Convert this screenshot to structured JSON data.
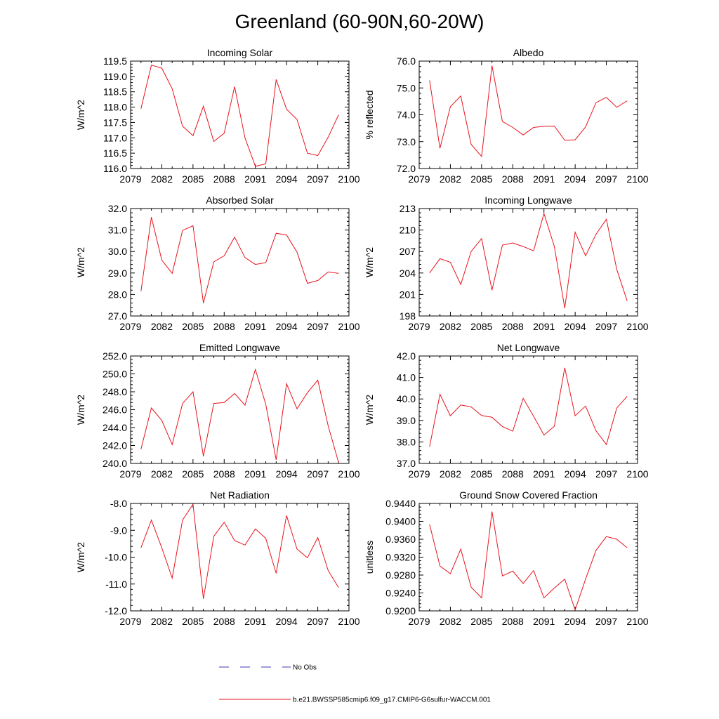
{
  "figure": {
    "title": "Greenland (60-90N,60-20W)",
    "legend": [
      {
        "label": "No Obs",
        "color": "#3b3bb3",
        "dash": true
      },
      {
        "label": "b.e21.BWSSP585cmip6.f09_g17.CMIP6-G6sulfur-WACCM.001",
        "color": "#e8141e",
        "dash": false
      }
    ]
  },
  "chart_data": [
    {
      "type": "line",
      "title": "Incoming Solar",
      "ylabel": "W/m^2",
      "xlim": [
        2079,
        2100
      ],
      "ylim": [
        116.0,
        119.5
      ],
      "xticks": [
        "2079",
        "2082",
        "2085",
        "2088",
        "2091",
        "2094",
        "2097",
        "2100"
      ],
      "yticks": [
        "116.0",
        "116.5",
        "117.0",
        "117.5",
        "118.0",
        "118.5",
        "119.0",
        "119.5"
      ],
      "x": [
        2080,
        2081,
        2082,
        2083,
        2084,
        2085,
        2086,
        2087,
        2088,
        2089,
        2090,
        2091,
        2092,
        2093,
        2094,
        2095,
        2096,
        2097,
        2098,
        2099
      ],
      "series": [
        {
          "name": "b.e21.BWSSP585cmip6.f09_g17.CMIP6-G6sulfur-WACCM.001",
          "values": [
            117.95,
            119.37,
            119.27,
            118.6,
            117.38,
            117.07,
            118.03,
            116.88,
            117.15,
            118.67,
            117.0,
            116.07,
            116.15,
            118.9,
            117.93,
            117.6,
            116.5,
            116.42,
            117.02,
            117.75
          ]
        }
      ]
    },
    {
      "type": "line",
      "title": "Albedo",
      "ylabel": "% reflected",
      "xlim": [
        2079,
        2100
      ],
      "ylim": [
        72.0,
        76.0
      ],
      "xticks": [
        "2079",
        "2082",
        "2085",
        "2088",
        "2091",
        "2094",
        "2097",
        "2100"
      ],
      "yticks": [
        "72.0",
        "73.0",
        "74.0",
        "75.0",
        "76.0"
      ],
      "x": [
        2080,
        2081,
        2082,
        2083,
        2084,
        2085,
        2086,
        2087,
        2088,
        2089,
        2090,
        2091,
        2092,
        2093,
        2094,
        2095,
        2096,
        2097,
        2098,
        2099
      ],
      "series": [
        {
          "name": "b.e21.BWSSP585cmip6.f09_g17.CMIP6-G6sulfur-WACCM.001",
          "values": [
            75.28,
            72.75,
            74.3,
            74.7,
            72.9,
            72.45,
            75.83,
            73.75,
            73.53,
            73.25,
            73.53,
            73.57,
            73.58,
            73.05,
            73.07,
            73.55,
            74.45,
            74.65,
            74.28,
            74.52
          ]
        }
      ]
    },
    {
      "type": "line",
      "title": "Absorbed Solar",
      "ylabel": "W/m^2",
      "xlim": [
        2079,
        2100
      ],
      "ylim": [
        27.0,
        32.0
      ],
      "xticks": [
        "2079",
        "2082",
        "2085",
        "2088",
        "2091",
        "2094",
        "2097",
        "2100"
      ],
      "yticks": [
        "27.0",
        "28.0",
        "29.0",
        "30.0",
        "31.0",
        "32.0"
      ],
      "x": [
        2080,
        2081,
        2082,
        2083,
        2084,
        2085,
        2086,
        2087,
        2088,
        2089,
        2090,
        2091,
        2092,
        2093,
        2094,
        2095,
        2096,
        2097,
        2098,
        2099
      ],
      "series": [
        {
          "name": "b.e21.BWSSP585cmip6.f09_g17.CMIP6-G6sulfur-WACCM.001",
          "values": [
            28.15,
            31.6,
            29.6,
            28.98,
            30.98,
            31.2,
            27.6,
            29.52,
            29.8,
            30.67,
            29.72,
            29.4,
            29.48,
            30.85,
            30.77,
            29.97,
            28.52,
            28.65,
            29.05,
            28.98
          ]
        }
      ]
    },
    {
      "type": "line",
      "title": "Incoming Longwave",
      "ylabel": "W/m^2",
      "xlim": [
        2079,
        2100
      ],
      "ylim": [
        198,
        213
      ],
      "xticks": [
        "2079",
        "2082",
        "2085",
        "2088",
        "2091",
        "2094",
        "2097",
        "2100"
      ],
      "yticks": [
        "198",
        "201",
        "204",
        "207",
        "210",
        "213"
      ],
      "x": [
        2080,
        2081,
        2082,
        2083,
        2084,
        2085,
        2086,
        2087,
        2088,
        2089,
        2090,
        2091,
        2092,
        2093,
        2094,
        2095,
        2096,
        2097,
        2098,
        2099
      ],
      "series": [
        {
          "name": "b.e21.BWSSP585cmip6.f09_g17.CMIP6-G6sulfur-WACCM.001",
          "values": [
            204.0,
            206.0,
            205.5,
            202.4,
            207.0,
            208.8,
            201.6,
            207.9,
            208.2,
            207.7,
            207.1,
            212.3,
            207.7,
            199.1,
            209.7,
            206.4,
            209.4,
            211.5,
            204.5,
            200.1
          ]
        }
      ]
    },
    {
      "type": "line",
      "title": "Emitted Longwave",
      "ylabel": "W/m^2",
      "xlim": [
        2079,
        2100
      ],
      "ylim": [
        240.0,
        252.0
      ],
      "xticks": [
        "2079",
        "2082",
        "2085",
        "2088",
        "2091",
        "2094",
        "2097",
        "2100"
      ],
      "yticks": [
        "240.0",
        "242.0",
        "244.0",
        "246.0",
        "248.0",
        "250.0",
        "252.0"
      ],
      "x": [
        2080,
        2081,
        2082,
        2083,
        2084,
        2085,
        2086,
        2087,
        2088,
        2089,
        2090,
        2091,
        2092,
        2093,
        2094,
        2095,
        2096,
        2097,
        2098,
        2099
      ],
      "series": [
        {
          "name": "b.e21.BWSSP585cmip6.f09_g17.CMIP6-G6sulfur-WACCM.001",
          "values": [
            241.6,
            246.2,
            244.8,
            242.1,
            246.7,
            248.0,
            240.8,
            246.7,
            246.8,
            247.8,
            246.5,
            250.5,
            246.6,
            240.4,
            248.9,
            246.1,
            247.9,
            249.3,
            244.2,
            240.1
          ]
        }
      ]
    },
    {
      "type": "line",
      "title": "Net Longwave",
      "ylabel": "W/m^2",
      "xlim": [
        2079,
        2100
      ],
      "ylim": [
        37.0,
        42.0
      ],
      "xticks": [
        "2079",
        "2082",
        "2085",
        "2088",
        "2091",
        "2094",
        "2097",
        "2100"
      ],
      "yticks": [
        "37.0",
        "38.0",
        "39.0",
        "40.0",
        "41.0",
        "42.0"
      ],
      "x": [
        2080,
        2081,
        2082,
        2083,
        2084,
        2085,
        2086,
        2087,
        2088,
        2089,
        2090,
        2091,
        2092,
        2093,
        2094,
        2095,
        2096,
        2097,
        2098,
        2099
      ],
      "series": [
        {
          "name": "b.e21.BWSSP585cmip6.f09_g17.CMIP6-G6sulfur-WACCM.001",
          "values": [
            37.78,
            40.22,
            39.22,
            39.72,
            39.63,
            39.23,
            39.15,
            38.72,
            38.5,
            40.03,
            39.2,
            38.32,
            38.73,
            41.45,
            39.22,
            39.67,
            38.52,
            37.88,
            39.58,
            40.12
          ]
        }
      ]
    },
    {
      "type": "line",
      "title": "Net Radiation",
      "ylabel": "W/m^2",
      "xlim": [
        2079,
        2100
      ],
      "ylim": [
        -12.0,
        -8.0
      ],
      "xticks": [
        "2079",
        "2082",
        "2085",
        "2088",
        "2091",
        "2094",
        "2097",
        "2100"
      ],
      "yticks": [
        "-12.0",
        "-11.0",
        "-10.0",
        "-9.0",
        "-8.0"
      ],
      "x": [
        2080,
        2081,
        2082,
        2083,
        2084,
        2085,
        2086,
        2087,
        2088,
        2089,
        2090,
        2091,
        2092,
        2093,
        2094,
        2095,
        2096,
        2097,
        2098,
        2099
      ],
      "series": [
        {
          "name": "b.e21.BWSSP585cmip6.f09_g17.CMIP6-G6sulfur-WACCM.001",
          "values": [
            -9.65,
            -8.62,
            -9.65,
            -10.78,
            -8.62,
            -8.03,
            -11.55,
            -9.22,
            -8.7,
            -9.38,
            -9.55,
            -8.95,
            -9.3,
            -10.6,
            -8.45,
            -9.7,
            -10.02,
            -9.27,
            -10.5,
            -11.13
          ]
        }
      ]
    },
    {
      "type": "line",
      "title": "Ground Snow Covered Fraction",
      "ylabel": "unitless",
      "xlim": [
        2079,
        2100
      ],
      "ylim": [
        0.92,
        0.944
      ],
      "xticks": [
        "2079",
        "2082",
        "2085",
        "2088",
        "2091",
        "2094",
        "2097",
        "2100"
      ],
      "yticks": [
        "0.9200",
        "0.9240",
        "0.9280",
        "0.9320",
        "0.9360",
        "0.9400",
        "0.9440"
      ],
      "x": [
        2080,
        2081,
        2082,
        2083,
        2084,
        2085,
        2086,
        2087,
        2088,
        2089,
        2090,
        2091,
        2092,
        2093,
        2094,
        2095,
        2096,
        2097,
        2098,
        2099
      ],
      "series": [
        {
          "name": "b.e21.BWSSP585cmip6.f09_g17.CMIP6-G6sulfur-WACCM.001",
          "values": [
            0.9393,
            0.93,
            0.9283,
            0.9338,
            0.9253,
            0.9229,
            0.9422,
            0.9278,
            0.9289,
            0.9261,
            0.929,
            0.9229,
            0.9251,
            0.9271,
            0.9202,
            0.9271,
            0.9335,
            0.9366,
            0.936,
            0.9341
          ]
        }
      ]
    }
  ]
}
